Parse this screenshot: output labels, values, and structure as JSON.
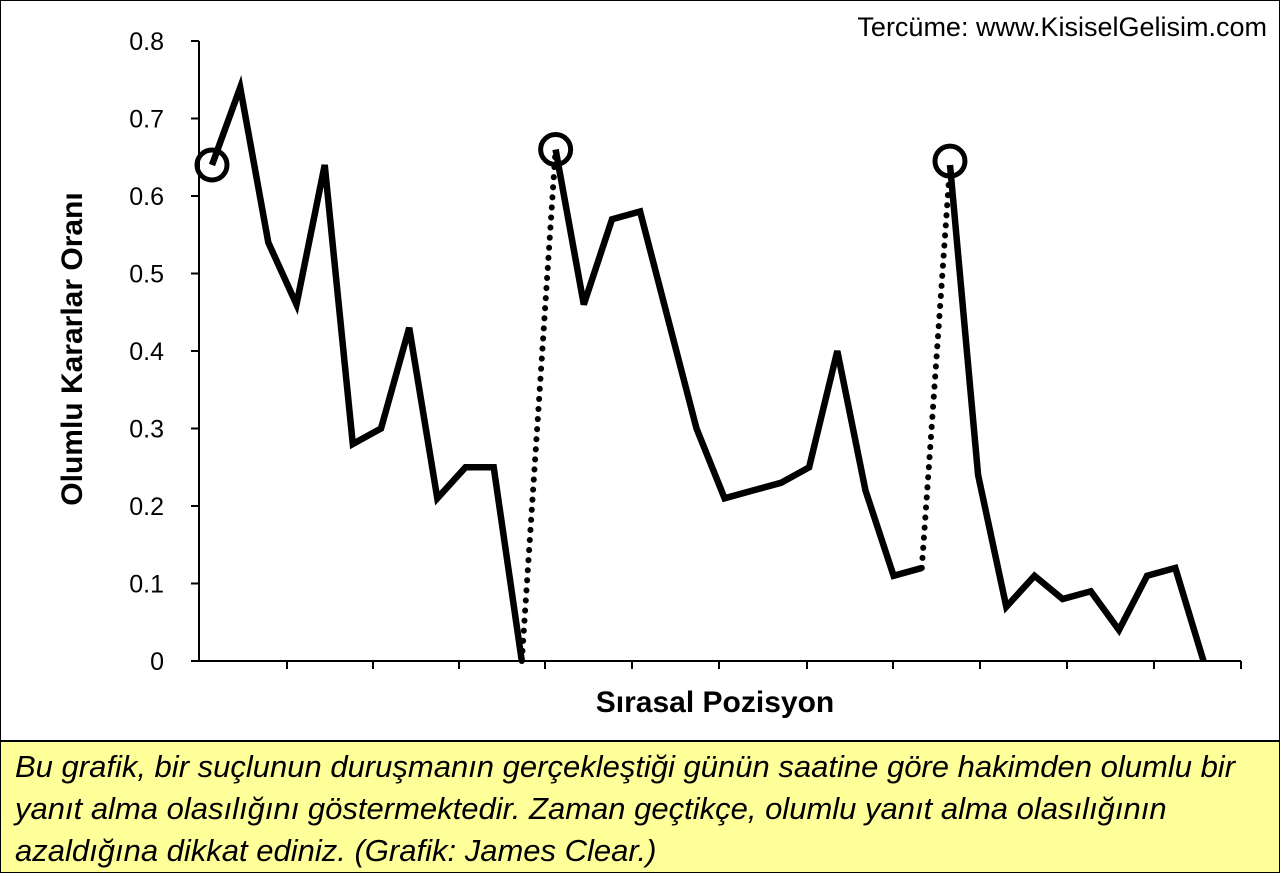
{
  "credit": "Tercüme: www.KisiselGelisim.com",
  "caption": "Bu grafik, bir suçlunun duruşmanın gerçekleştiği günün saatine göre hakimden olumlu bir yanıt alma olasılığını göstermektedir. Zaman geçtikçe, olumlu yanıt alma olasılığının azaldığına dikkat ediniz. (Grafik: James Clear.)",
  "colors": {
    "caption_background": "#ffff99",
    "line": "#000000"
  },
  "chart_data": {
    "type": "line",
    "title": "",
    "xlabel": "Sırasal Pozisyon",
    "ylabel": "Olumlu Kararlar Oranı",
    "ylim": [
      0,
      0.8
    ],
    "yticks": [
      "0",
      "0.1",
      "0.2",
      "0.3",
      "0.4",
      "0.5",
      "0.6",
      "0.7",
      "0.8"
    ],
    "xlim": [
      0,
      36
    ],
    "grid": false,
    "series": [
      {
        "segment": "session-1",
        "style": "solid",
        "x": [
          0,
          1,
          2,
          3,
          4,
          5,
          6,
          7,
          8,
          9,
          10,
          11
        ],
        "y": [
          0.64,
          0.74,
          0.54,
          0.46,
          0.64,
          0.28,
          0.3,
          0.43,
          0.21,
          0.25,
          0.25,
          0.0
        ]
      },
      {
        "segment": "break-1",
        "style": "dotted",
        "x": [
          11,
          12.2
        ],
        "y": [
          0.0,
          0.66
        ]
      },
      {
        "segment": "session-2",
        "style": "solid",
        "x": [
          12.2,
          13.2,
          14.2,
          15.2,
          16.2,
          17.2,
          18.2,
          19.2,
          20.2,
          21.2,
          22.2,
          23.2,
          24.2,
          25.2
        ],
        "y": [
          0.66,
          0.46,
          0.57,
          0.58,
          0.44,
          0.3,
          0.21,
          0.22,
          0.23,
          0.25,
          0.4,
          0.22,
          0.11,
          0.12
        ]
      },
      {
        "segment": "break-2",
        "style": "dotted",
        "x": [
          25.2,
          26.2
        ],
        "y": [
          0.12,
          0.64
        ]
      },
      {
        "segment": "session-3",
        "style": "solid",
        "x": [
          26.2,
          27.2,
          28.2,
          29.2,
          30.2,
          31.2,
          32.2,
          33.2,
          34.2,
          35.2
        ],
        "y": [
          0.64,
          0.24,
          0.07,
          0.11,
          0.08,
          0.09,
          0.04,
          0.11,
          0.12,
          0.0
        ]
      }
    ],
    "markers": [
      {
        "shape": "circle",
        "x": 0,
        "y": 0.64
      },
      {
        "shape": "circle",
        "x": 12.2,
        "y": 0.66
      },
      {
        "shape": "circle",
        "x": 26.2,
        "y": 0.645
      }
    ]
  }
}
